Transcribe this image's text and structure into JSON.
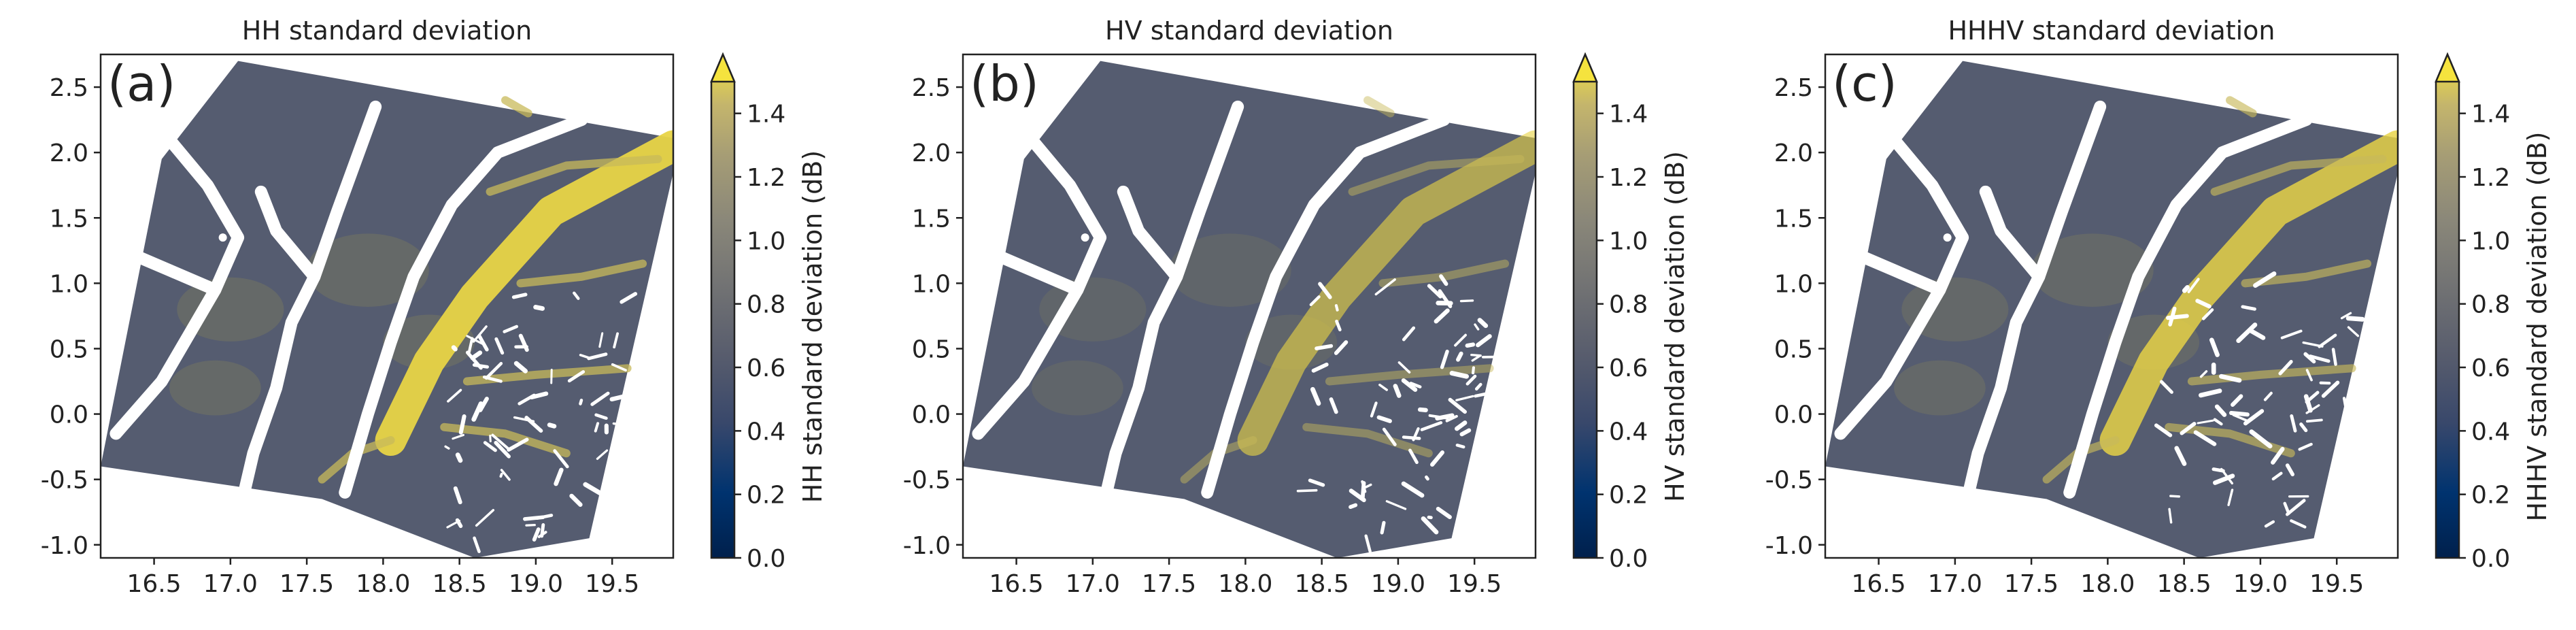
{
  "chart_data": [
    {
      "type": "heatmap",
      "panel_label": "(a)",
      "title": "HH standard deviation",
      "colorbar_label": "HH standard deviation (dB)",
      "xlim": [
        16.15,
        19.9
      ],
      "ylim": [
        -1.1,
        2.75
      ],
      "x_ticks": [
        16.5,
        17.0,
        17.5,
        18.0,
        18.5,
        19.0,
        19.5
      ],
      "y_ticks": [
        -1.0,
        -0.5,
        0.0,
        0.5,
        1.0,
        1.5,
        2.0,
        2.5
      ],
      "colorbar_range": [
        0.0,
        1.5
      ],
      "colorbar_ticks": [
        0.0,
        0.2,
        0.4,
        0.6,
        0.8,
        1.0,
        1.2,
        1.4
      ],
      "colorbar_extend": "max",
      "colormap": "cividis",
      "highlight_strength": 1.0
    },
    {
      "type": "heatmap",
      "panel_label": "(b)",
      "title": "HV standard deviation",
      "colorbar_label": "HV standard deviation (dB)",
      "xlim": [
        16.15,
        19.9
      ],
      "ylim": [
        -1.1,
        2.75
      ],
      "x_ticks": [
        16.5,
        17.0,
        17.5,
        18.0,
        18.5,
        19.0,
        19.5
      ],
      "y_ticks": [
        -1.0,
        -0.5,
        0.0,
        0.5,
        1.0,
        1.5,
        2.0,
        2.5
      ],
      "colorbar_range": [
        0.0,
        1.5
      ],
      "colorbar_ticks": [
        0.0,
        0.2,
        0.4,
        0.6,
        0.8,
        1.0,
        1.2,
        1.4
      ],
      "colorbar_extend": "max",
      "colormap": "cividis",
      "highlight_strength": 0.45
    },
    {
      "type": "heatmap",
      "panel_label": "(c)",
      "title": "HHHV standard deviation",
      "colorbar_label": "HHHV standard deviation (dB)",
      "xlim": [
        16.15,
        19.9
      ],
      "ylim": [
        -1.1,
        2.75
      ],
      "x_ticks": [
        16.5,
        17.0,
        17.5,
        18.0,
        18.5,
        19.0,
        19.5
      ],
      "y_ticks": [
        -1.0,
        -0.5,
        0.0,
        0.5,
        1.0,
        1.5,
        2.0,
        2.5
      ],
      "colorbar_range": [
        0.0,
        1.5
      ],
      "colorbar_ticks": [
        0.0,
        0.2,
        0.4,
        0.6,
        0.8,
        1.0,
        1.2,
        1.4
      ],
      "colorbar_extend": "max",
      "colormap": "cividis",
      "highlight_strength": 0.8
    }
  ]
}
